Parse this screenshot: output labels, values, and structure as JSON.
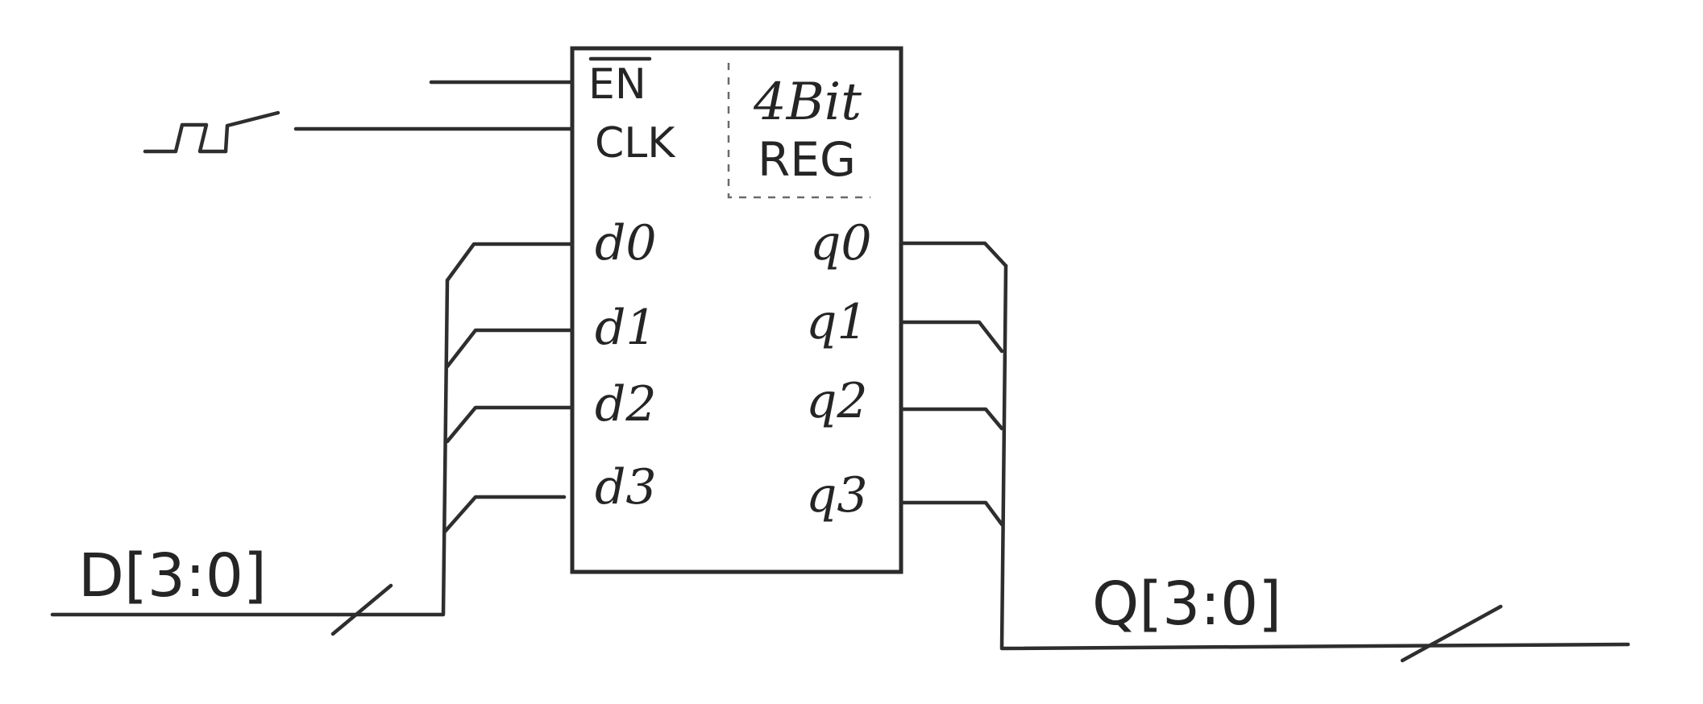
{
  "register": {
    "en_label": "EN",
    "clk_label": "CLK",
    "title_line1": "4Bit",
    "title_line2": "REG",
    "inputs": [
      "d0",
      "d1",
      "d2",
      "d3"
    ],
    "outputs": [
      "q0",
      "q1",
      "q2",
      "q3"
    ]
  },
  "buses": {
    "input_label": "D[3:0]",
    "output_label": "Q[3:0]"
  },
  "clock_icon": "square-wave-icon",
  "colors": {
    "ink": "#2b2b2b",
    "paper": "#ffffff"
  }
}
